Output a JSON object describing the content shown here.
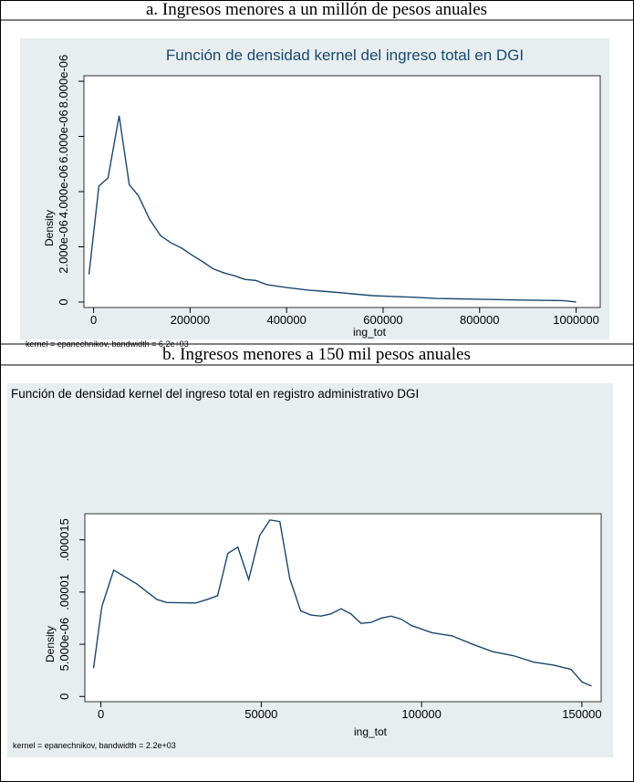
{
  "chart_data": [
    {
      "type": "line",
      "caption": "a. Ingresos menores a un millón de pesos anuales",
      "title": "Función de densidad kernel del ingreso total en DGI",
      "xlabel": "ing_tot",
      "ylabel": "Density",
      "note": "kernel = epanechnikov, bandwidth =  6.2e+03",
      "color": "#1a476f",
      "x": [
        -9500,
        11000,
        30000,
        53000,
        74000,
        93000,
        116000,
        139000,
        160000,
        183000,
        204000,
        227000,
        248000,
        271000,
        292000,
        313000,
        336000,
        359000,
        401000,
        445000,
        489000,
        534000,
        578000,
        622000,
        666000,
        710000,
        798000,
        886000,
        973000,
        1000000
      ],
      "values": [
        1e-06,
        4.2e-06,
        4.5e-06,
        6.75e-06,
        4.25e-06,
        3.85e-06,
        3e-06,
        2.4e-06,
        2.15e-06,
        1.95e-06,
        1.7e-06,
        1.45e-06,
        1.2e-06,
        1.05e-06,
        9.5e-07,
        8.2e-07,
        7.8e-07,
        6.3e-07,
        5.2e-07,
        4.3e-07,
        3.7e-07,
        3e-07,
        2.3e-07,
        2e-07,
        1.7e-07,
        1.3e-07,
        1e-07,
        7e-08,
        5e-08,
        0.0
      ],
      "xlim": [
        -20000,
        1050000
      ],
      "ylim": [
        -2e-07,
        8.2e-06
      ],
      "xticks": [
        0,
        200000,
        400000,
        600000,
        800000,
        1000000
      ],
      "yticks": [
        0,
        {
          "value": 2e-06,
          "label": "2.000e-06"
        },
        {
          "value": 4e-06,
          "label": "4.000e-06"
        },
        {
          "value": 6e-06,
          "label": "6.000e-06"
        },
        {
          "value": 8e-06,
          "label": "8.000e-06"
        }
      ]
    },
    {
      "type": "line",
      "caption": "b. Ingresos menores a 150 mil pesos anuales",
      "title": "Función de densidad kernel del ingreso total en registro administrativo DGI",
      "xlabel": "ing_tot",
      "ylabel": "Density",
      "note": "kernel = epanechnikov, bandwidth =  2.2e+03",
      "color": "#1a476f",
      "x": [
        -2300,
        300,
        4000,
        11100,
        17400,
        20500,
        29600,
        33300,
        36400,
        39600,
        42700,
        46100,
        49500,
        52700,
        55800,
        58900,
        62300,
        65500,
        68600,
        71700,
        74900,
        78000,
        81100,
        84300,
        87400,
        90500,
        93700,
        96800,
        103300,
        109600,
        115900,
        122100,
        128700,
        134900,
        141200,
        146600,
        150000,
        153000
      ],
      "values": [
        2.7e-06,
        8.6e-06,
        1.21e-05,
        1.08e-05,
        9.3e-06,
        9e-06,
        8.95e-06,
        9.3e-06,
        9.65e-06,
        1.37e-05,
        1.43e-05,
        1.12e-05,
        1.54e-05,
        1.69e-05,
        1.675e-05,
        1.13e-05,
        8.2e-06,
        7.8e-06,
        7.7e-06,
        7.9e-06,
        8.4e-06,
        7.9e-06,
        7e-06,
        7.1e-06,
        7.5e-06,
        7.7e-06,
        7.4e-06,
        6.8e-06,
        6.1e-06,
        5.8e-06,
        5e-06,
        4.3e-06,
        3.9e-06,
        3.3e-06,
        3e-06,
        2.6e-06,
        1.4e-06,
        1e-06
      ],
      "xlim": [
        -5000,
        156000
      ],
      "ylim": [
        -5e-07,
        1.75e-05
      ],
      "xticks": [
        0,
        50000,
        100000,
        150000
      ],
      "yticks": [
        0,
        {
          "value": 5e-06,
          "label": "5.000e-06"
        },
        {
          "value": 1e-05,
          "label": ".00001"
        },
        {
          "value": 1.5e-05,
          "label": ".000015"
        }
      ]
    }
  ]
}
